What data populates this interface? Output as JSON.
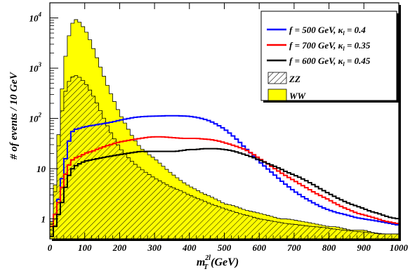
{
  "chart_data": {
    "type": "histogram",
    "xlabel": "m_T^{2l} (GeV)",
    "xlabel_main": "m",
    "xlabel_sup": "2l",
    "xlabel_sub": "T",
    "xlabel_tail": " (GeV)",
    "ylabel": "# of events / 10 GeV",
    "xlim": [
      0,
      1000
    ],
    "ylim": [
      0.4,
      20000
    ],
    "yscale": "log",
    "x_ticks": [
      0,
      100,
      200,
      300,
      400,
      500,
      600,
      700,
      800,
      900,
      1000
    ],
    "y_ticks": [
      {
        "value": 1,
        "label": "1"
      },
      {
        "value": 10,
        "label": "10"
      },
      {
        "value": 100,
        "label": "10",
        "exp": "2"
      },
      {
        "value": 1000,
        "label": "10",
        "exp": "3"
      },
      {
        "value": 10000,
        "label": "10",
        "exp": "4"
      }
    ],
    "bin_width": 10,
    "legend_position": "top-right",
    "legend": [
      {
        "name": "f = 500 GeV, κ",
        "sub": "l",
        "value": " = 0.4",
        "color": "#0000ff",
        "kind": "line"
      },
      {
        "name": "f = 700 GeV, κ",
        "sub": "l",
        "value": " = 0.35",
        "color": "#ff0000",
        "kind": "line"
      },
      {
        "name": "f = 600 GeV, κ",
        "sub": "l",
        "value": " = 0.45",
        "color": "#000000",
        "kind": "line"
      },
      {
        "name": "ZZ",
        "sub": "",
        "value": "",
        "color": "#000000",
        "kind": "hatch"
      },
      {
        "name": "WW",
        "sub": "",
        "value": "",
        "color": "#ffff00",
        "kind": "fill"
      }
    ],
    "series": [
      {
        "name": "WW",
        "style": "filled",
        "color": "#ffff00",
        "x": [
          0,
          10,
          20,
          30,
          40,
          50,
          60,
          70,
          80,
          90,
          100,
          110,
          120,
          130,
          140,
          150,
          160,
          170,
          180,
          190,
          200,
          220,
          240,
          260,
          280,
          300,
          320,
          340,
          360,
          380,
          400,
          420,
          440,
          460,
          480,
          500,
          520,
          540,
          560,
          580,
          600,
          620,
          640,
          660,
          680,
          700,
          720,
          740,
          760,
          780,
          800,
          820,
          840,
          860,
          880,
          900,
          920,
          940,
          960,
          980,
          1000
        ],
        "y": [
          0.5,
          1.5,
          15,
          150,
          1000,
          3000,
          6500,
          9500,
          9000,
          7500,
          6000,
          4500,
          3000,
          2000,
          1300,
          850,
          560,
          370,
          260,
          180,
          125,
          70,
          40,
          26,
          20,
          16,
          12,
          9,
          7,
          5.5,
          4.5,
          3.8,
          3.2,
          2.8,
          2.4,
          2.0,
          1.9,
          1.7,
          1.5,
          1.4,
          1.3,
          1.2,
          1.1,
          1.0,
          1.0,
          0.95,
          0.9,
          0.85,
          0.8,
          0.75,
          0.7,
          0.7,
          0.65,
          0.6,
          0.6,
          0.6,
          0.55,
          0.5,
          0.5,
          0.5,
          0.5
        ]
      },
      {
        "name": "ZZ",
        "style": "hatched",
        "color": "#000000",
        "x": [
          0,
          10,
          20,
          30,
          40,
          50,
          60,
          70,
          80,
          90,
          100,
          110,
          120,
          130,
          140,
          150,
          160,
          170,
          180,
          190,
          200,
          220,
          240,
          260,
          280,
          300,
          320,
          340,
          360,
          380,
          400,
          420,
          440,
          460,
          480,
          500,
          520,
          540,
          560,
          580,
          600,
          620,
          640,
          660,
          680,
          700,
          720,
          740,
          760,
          780,
          800,
          820,
          840,
          860,
          880,
          900,
          920,
          940,
          960,
          980,
          1000
        ],
        "y": [
          0.5,
          1.2,
          10,
          80,
          250,
          480,
          620,
          720,
          700,
          620,
          520,
          420,
          320,
          240,
          170,
          120,
          85,
          60,
          45,
          34,
          26,
          18,
          13,
          10,
          8,
          6.5,
          5.5,
          4.6,
          4.0,
          3.5,
          3.0,
          2.6,
          2.3,
          2.0,
          1.8,
          1.6,
          1.45,
          1.3,
          1.2,
          1.1,
          1.0,
          0.95,
          0.9,
          0.85,
          0.8,
          0.78,
          0.75,
          0.72,
          0.7,
          0.68,
          0.65,
          0.62,
          0.6,
          0.58,
          0.56,
          0.55,
          0.53,
          0.52,
          0.5,
          0.5,
          0.5
        ]
      },
      {
        "name": "f = 500 GeV, κ_l = 0.4",
        "style": "line",
        "color": "#0000ff",
        "x": [
          0,
          10,
          20,
          30,
          40,
          50,
          60,
          70,
          80,
          90,
          100,
          120,
          140,
          160,
          180,
          200,
          220,
          240,
          260,
          280,
          300,
          320,
          340,
          360,
          380,
          400,
          420,
          440,
          460,
          480,
          500,
          520,
          540,
          560,
          580,
          600,
          620,
          640,
          660,
          680,
          700,
          720,
          740,
          760,
          780,
          800,
          820,
          840,
          860,
          880,
          900,
          920,
          940,
          960,
          980,
          1000
        ],
        "y": [
          0.5,
          1,
          1.5,
          4,
          10,
          25,
          50,
          60,
          62,
          65,
          68,
          72,
          76,
          80,
          85,
          92,
          98,
          104,
          108,
          110,
          111,
          112,
          113,
          113,
          112,
          110,
          105,
          98,
          88,
          75,
          62,
          48,
          36,
          26,
          19,
          14,
          10.5,
          8,
          6,
          4.6,
          3.6,
          2.9,
          2.4,
          2.0,
          1.7,
          1.5,
          1.35,
          1.25,
          1.15,
          1.05,
          1.0,
          0.95,
          0.9,
          0.85,
          0.8,
          0.75
        ]
      },
      {
        "name": "f = 700 GeV, κ_l = 0.35",
        "style": "line",
        "color": "#ff0000",
        "x": [
          0,
          10,
          20,
          30,
          40,
          50,
          60,
          70,
          80,
          90,
          100,
          120,
          140,
          160,
          180,
          200,
          220,
          240,
          260,
          280,
          300,
          320,
          340,
          360,
          380,
          400,
          420,
          440,
          460,
          480,
          500,
          520,
          540,
          560,
          580,
          600,
          620,
          640,
          660,
          680,
          700,
          720,
          740,
          760,
          780,
          800,
          820,
          840,
          860,
          880,
          900,
          920,
          940,
          960,
          980,
          1000
        ],
        "y": [
          0.5,
          1,
          1.5,
          3,
          6,
          10,
          14,
          16,
          17,
          18,
          20,
          22,
          25,
          28,
          31,
          34,
          36,
          38,
          40,
          42,
          43,
          43,
          42,
          41,
          40,
          40,
          40,
          39,
          38,
          36,
          33,
          30,
          27,
          24,
          20,
          16,
          13,
          10.5,
          8.5,
          7,
          5.8,
          4.8,
          4.0,
          3.3,
          2.8,
          2.4,
          2.0,
          1.7,
          1.5,
          1.3,
          1.2,
          1.1,
          1.0,
          0.9,
          0.85,
          0.8
        ]
      },
      {
        "name": "f = 600 GeV, κ_l = 0.45",
        "style": "line",
        "color": "#000000",
        "x": [
          0,
          10,
          20,
          30,
          40,
          50,
          60,
          70,
          80,
          90,
          100,
          120,
          140,
          160,
          180,
          200,
          220,
          240,
          260,
          280,
          300,
          320,
          340,
          360,
          380,
          400,
          420,
          440,
          460,
          480,
          500,
          520,
          540,
          560,
          580,
          600,
          620,
          640,
          660,
          680,
          700,
          720,
          740,
          760,
          780,
          800,
          820,
          840,
          860,
          880,
          900,
          920,
          940,
          960,
          980,
          1000
        ],
        "y": [
          0.4,
          0.5,
          1,
          1.5,
          3,
          6,
          9,
          11,
          12,
          13,
          14,
          15,
          16,
          17,
          18,
          19,
          20,
          21,
          22,
          22,
          22,
          22,
          22,
          22,
          23,
          24,
          24,
          25,
          25,
          25,
          24,
          23,
          21,
          19,
          17,
          15,
          13,
          11.5,
          10,
          8.5,
          7.5,
          6.5,
          5.5,
          4.6,
          3.8,
          3.2,
          2.7,
          2.3,
          2.0,
          1.8,
          1.6,
          1.4,
          1.3,
          1.15,
          1.05,
          1.0
        ]
      }
    ]
  }
}
